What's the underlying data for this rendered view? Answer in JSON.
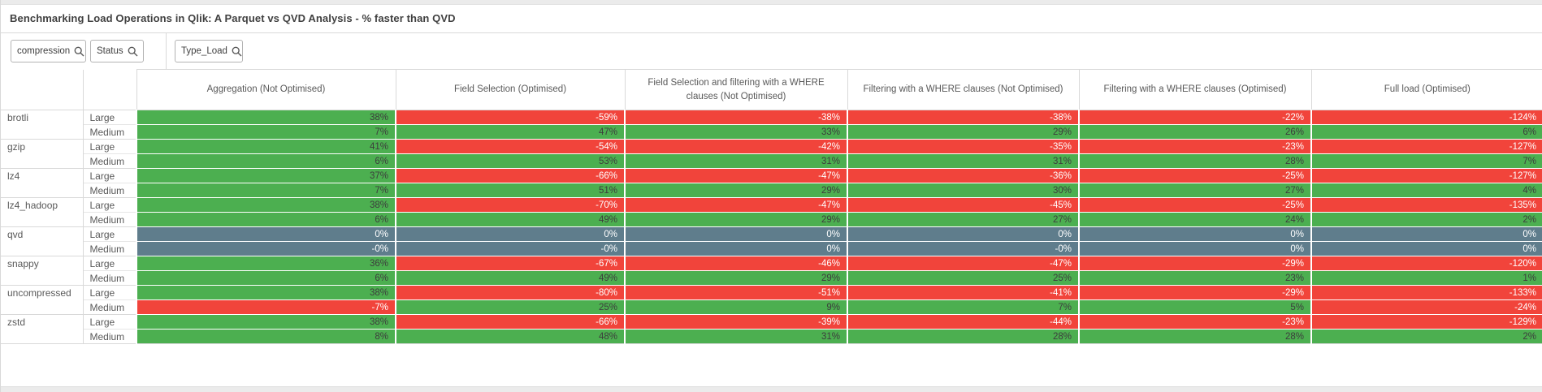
{
  "header": {
    "title": "Benchmarking Load Operations in Qlik: A Parquet vs QVD Analysis - % faster than QVD"
  },
  "filters": [
    {
      "label": "compression",
      "icon": "search-icon"
    },
    {
      "label": "Status",
      "icon": "search-icon"
    },
    {
      "label": "Type_Load",
      "icon": "search-icon"
    }
  ],
  "colors": {
    "positive": "#4caf50",
    "negative": "#f1443b",
    "baseline": "#5f7d8c",
    "positive_text": "#3d3d3d",
    "negative_text": "#ffffff",
    "border": "#d9d9d9"
  },
  "pivot": {
    "measure_headers": [
      "Aggregation (Not Optimised)",
      "Field Selection (Optimised)",
      "Field Selection and filtering with a WHERE clauses (Not Optimised)",
      "Filtering with a WHERE clauses (Not Optimised)",
      "Filtering with a WHERE clauses (Optimised)",
      "Full load (Optimised)"
    ],
    "groups": [
      {
        "label": "brotli",
        "baseline": false,
        "rows": [
          {
            "status": "Large",
            "values": [
              "38%",
              "-59%",
              "-38%",
              "-38%",
              "-22%",
              "-124%"
            ]
          },
          {
            "status": "Medium",
            "values": [
              "7%",
              "47%",
              "33%",
              "29%",
              "26%",
              "6%"
            ]
          }
        ]
      },
      {
        "label": "gzip",
        "baseline": false,
        "rows": [
          {
            "status": "Large",
            "values": [
              "41%",
              "-54%",
              "-42%",
              "-35%",
              "-23%",
              "-127%"
            ]
          },
          {
            "status": "Medium",
            "values": [
              "6%",
              "53%",
              "31%",
              "31%",
              "28%",
              "7%"
            ]
          }
        ]
      },
      {
        "label": "lz4",
        "baseline": false,
        "rows": [
          {
            "status": "Large",
            "values": [
              "37%",
              "-66%",
              "-47%",
              "-36%",
              "-25%",
              "-127%"
            ]
          },
          {
            "status": "Medium",
            "values": [
              "7%",
              "51%",
              "29%",
              "30%",
              "27%",
              "4%"
            ]
          }
        ]
      },
      {
        "label": "lz4_hadoop",
        "baseline": false,
        "rows": [
          {
            "status": "Large",
            "values": [
              "38%",
              "-70%",
              "-47%",
              "-45%",
              "-25%",
              "-135%"
            ]
          },
          {
            "status": "Medium",
            "values": [
              "6%",
              "49%",
              "29%",
              "27%",
              "24%",
              "2%"
            ]
          }
        ]
      },
      {
        "label": "qvd",
        "baseline": true,
        "rows": [
          {
            "status": "Large",
            "values": [
              "0%",
              "0%",
              "0%",
              "0%",
              "0%",
              "0%"
            ]
          },
          {
            "status": "Medium",
            "values": [
              "-0%",
              "-0%",
              "0%",
              "-0%",
              "0%",
              "0%"
            ]
          }
        ]
      },
      {
        "label": "snappy",
        "baseline": false,
        "rows": [
          {
            "status": "Large",
            "values": [
              "36%",
              "-67%",
              "-46%",
              "-47%",
              "-29%",
              "-120%"
            ]
          },
          {
            "status": "Medium",
            "values": [
              "6%",
              "49%",
              "29%",
              "25%",
              "23%",
              "1%"
            ]
          }
        ]
      },
      {
        "label": "uncompressed",
        "baseline": false,
        "rows": [
          {
            "status": "Large",
            "values": [
              "38%",
              "-80%",
              "-51%",
              "-41%",
              "-29%",
              "-133%"
            ]
          },
          {
            "status": "Medium",
            "values": [
              "-7%",
              "25%",
              "9%",
              "7%",
              "5%",
              "-24%"
            ]
          }
        ]
      },
      {
        "label": "zstd",
        "baseline": false,
        "rows": [
          {
            "status": "Large",
            "values": [
              "38%",
              "-66%",
              "-39%",
              "-44%",
              "-23%",
              "-129%"
            ]
          },
          {
            "status": "Medium",
            "values": [
              "8%",
              "48%",
              "31%",
              "28%",
              "28%",
              "2%"
            ]
          }
        ]
      }
    ]
  }
}
